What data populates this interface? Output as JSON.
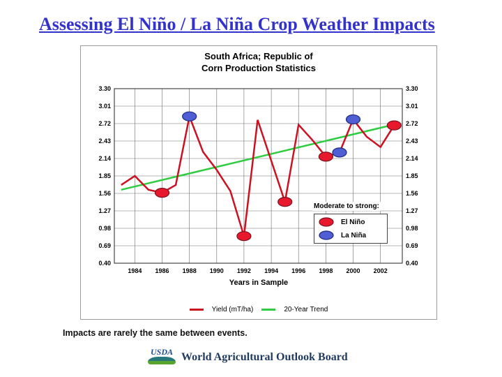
{
  "slide": {
    "title": "Assessing El Niño / La Niña Crop Weather Impacts",
    "title_color": "#3333cc",
    "caption": "Impacts are rarely the same between events."
  },
  "chart_data": {
    "type": "line",
    "title": "South Africa; Republic of Corn Production Statistics",
    "title_lines": [
      "South Africa; Republic of",
      "Corn Production Statistics"
    ],
    "xlabel": "Years in Sample",
    "ylabel": "",
    "xlim": [
      1982.5,
      2003.6
    ],
    "ylim": [
      0.4,
      3.3
    ],
    "x_ticks": [
      1984,
      1986,
      1988,
      1990,
      1992,
      1994,
      1996,
      1998,
      2000,
      2002
    ],
    "y_ticks": [
      3.3,
      3.01,
      2.72,
      2.43,
      2.14,
      1.85,
      1.56,
      1.27,
      0.98,
      0.69,
      0.4
    ],
    "grid": true,
    "series": [
      {
        "name": "Yield (mT/ha)",
        "color": "#cc1122",
        "x": [
          1983,
          1984,
          1985,
          1986,
          1987,
          1988,
          1989,
          1990,
          1991,
          1992,
          1993,
          1994,
          1995,
          1996,
          1997,
          1998,
          1999,
          2000,
          2001,
          2002,
          2003
        ],
        "values": [
          1.7,
          1.85,
          1.62,
          1.57,
          1.7,
          2.84,
          2.25,
          1.95,
          1.6,
          0.85,
          2.78,
          2.1,
          1.42,
          2.7,
          2.45,
          2.17,
          2.24,
          2.79,
          2.5,
          2.33,
          2.69
        ]
      },
      {
        "name": "20-Year Trend",
        "color": "#2ecc40",
        "x": [
          1983,
          2003.3
        ],
        "values": [
          1.62,
          2.72
        ]
      }
    ],
    "events": [
      {
        "phase": "el_nino",
        "year": 1986,
        "value": 1.57
      },
      {
        "phase": "la_nina",
        "year": 1988,
        "value": 2.84
      },
      {
        "phase": "el_nino",
        "year": 1992,
        "value": 0.85
      },
      {
        "phase": "el_nino",
        "year": 1995,
        "value": 1.42
      },
      {
        "phase": "el_nino",
        "year": 1998,
        "value": 2.17
      },
      {
        "phase": "la_nina",
        "year": 1999,
        "value": 2.24
      },
      {
        "phase": "la_nina",
        "year": 2000,
        "value": 2.79
      },
      {
        "phase": "el_nino",
        "year": 2003,
        "value": 2.69
      }
    ],
    "legend": {
      "header": "Moderate to strong:",
      "el_nino_label": "El Niño",
      "la_nina_label": "La Niña",
      "position": "inside-right"
    },
    "colors": {
      "el_nino": "#e8192c",
      "el_nino_edge": "#7a1020",
      "la_nina": "#4f5ed2",
      "la_nina_edge": "#1f2a80"
    }
  },
  "footer": {
    "logo_text": "USDA",
    "logo_color": "#1b4c8f",
    "org": "World Agricultural Outlook Board",
    "org_color": "#1e3a5f"
  }
}
